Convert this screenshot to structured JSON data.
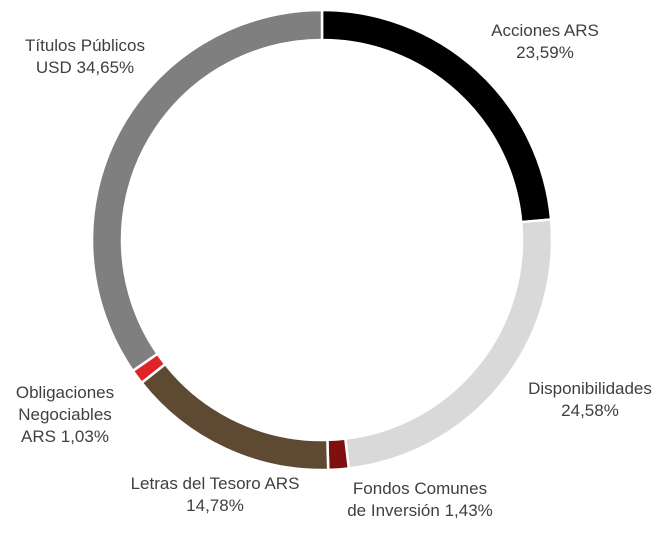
{
  "chart_data": {
    "type": "donut",
    "categories": [
      "Acciones ARS",
      "Disponibilidades",
      "Fondos Comunes de Inversión",
      "Letras del Tesoro ARS",
      "Obligaciones Negociables ARS",
      "Títulos Públicos USD"
    ],
    "values": [
      23.59,
      24.58,
      1.43,
      14.78,
      1.03,
      34.65
    ],
    "value_labels": [
      "23,59%",
      "24,58%",
      "1,43%",
      "14,78%",
      "1,03%",
      "34,65%"
    ],
    "colors": [
      "#000000",
      "#d9d9d9",
      "#7f1010",
      "#5e4a33",
      "#e0222a",
      "#7f7f7f"
    ]
  }
}
